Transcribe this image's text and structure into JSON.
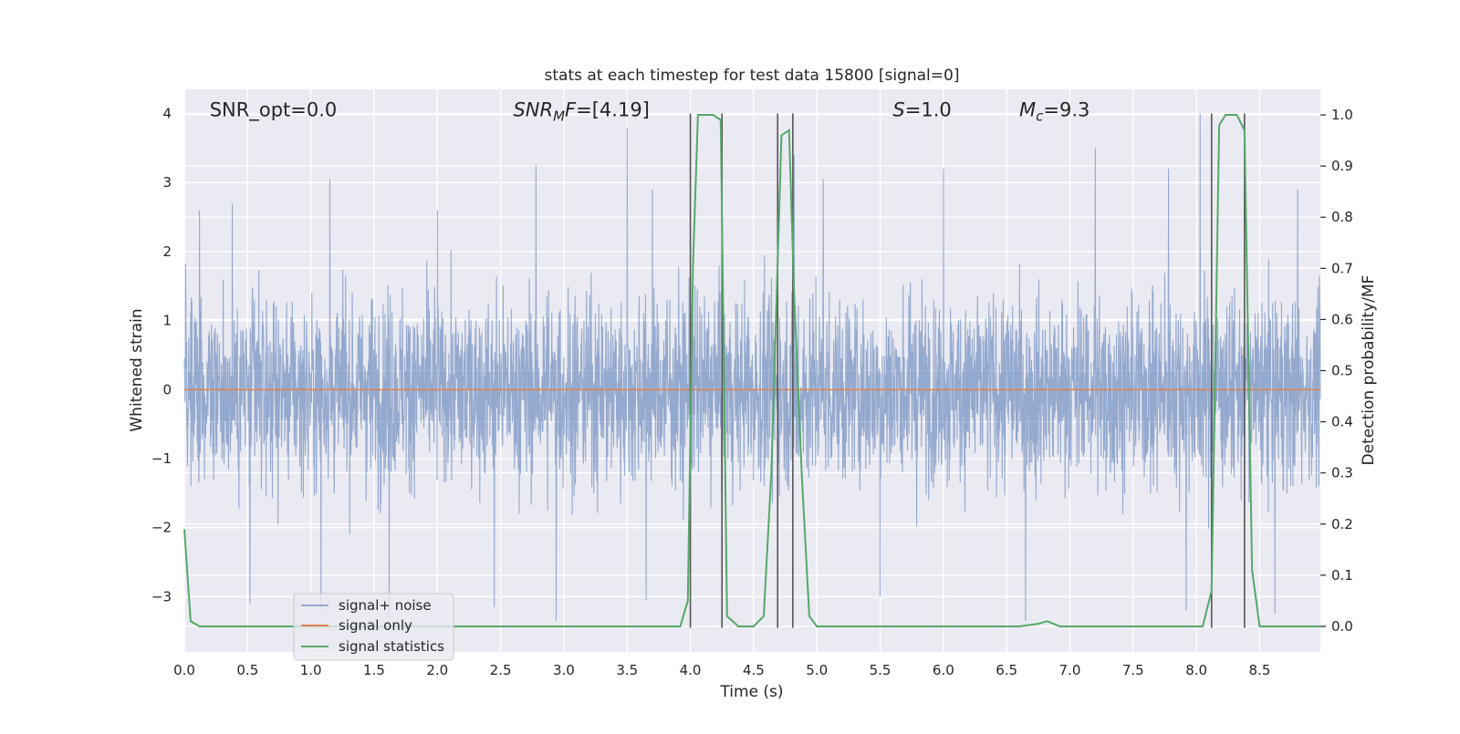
{
  "chart_data": {
    "type": "line",
    "title": "stats at each timestep for test data 15800 [signal=0]",
    "xlabel": "Time (s)",
    "ylabel_left": "Whitened strain",
    "ylabel_right": "Detection probability/MF",
    "xlim": [
      0.0,
      8.98
    ],
    "ylim_left": [
      -3.8,
      4.35
    ],
    "ylim_right": [
      -0.05,
      1.05
    ],
    "xticks": [
      0.0,
      0.5,
      1.0,
      1.5,
      2.0,
      2.5,
      3.0,
      3.5,
      4.0,
      4.5,
      5.0,
      5.5,
      6.0,
      6.5,
      7.0,
      7.5,
      8.0,
      8.5
    ],
    "xtick_labels": [
      "0.0",
      "0.5",
      "1.0",
      "1.5",
      "2.0",
      "2.5",
      "3.0",
      "3.5",
      "4.0",
      "4.5",
      "5.0",
      "5.5",
      "6.0",
      "6.5",
      "7.0",
      "7.5",
      "8.0",
      "8.5"
    ],
    "yticks_left": [
      -3,
      -2,
      -1,
      0,
      1,
      2,
      3,
      4
    ],
    "ytick_labels_left": [
      "−3",
      "−2",
      "−1",
      "0",
      "1",
      "2",
      "3",
      "4"
    ],
    "yticks_right": [
      0.0,
      0.1,
      0.2,
      0.3,
      0.4,
      0.5,
      0.6,
      0.7,
      0.8,
      0.9,
      1.0
    ],
    "ytick_labels_right": [
      "0.0",
      "0.1",
      "0.2",
      "0.3",
      "0.4",
      "0.5",
      "0.6",
      "0.7",
      "0.8",
      "0.9",
      "1.0"
    ],
    "grid": true,
    "legend_position": "bottom-left",
    "annotations": [
      {
        "label": "SNR_opt=0.0",
        "x": 0.2,
        "y": 4.05,
        "italic_parts": []
      },
      {
        "label": "SNR_MF=[4.19]",
        "x": 2.6,
        "y": 4.05,
        "segments": [
          [
            "SNR",
            "italic"
          ],
          [
            "M",
            "italic-sub"
          ],
          [
            "F",
            "italic"
          ],
          [
            "=[4.19]",
            "normal"
          ]
        ]
      },
      {
        "label": "S=1.0",
        "x": 5.6,
        "y": 4.05,
        "segments": [
          [
            "S",
            "italic"
          ],
          [
            "=1.0",
            "normal"
          ]
        ]
      },
      {
        "label": "M_c=9.3",
        "x": 6.6,
        "y": 4.05,
        "segments": [
          [
            "M",
            "italic"
          ],
          [
            "c",
            "italic-sub"
          ],
          [
            "=9.3",
            "normal"
          ]
        ]
      }
    ],
    "series": [
      {
        "name": "signal+ noise",
        "color": "#4c72b0",
        "opacity": 0.55,
        "axis": "left",
        "kind": "dense-noise",
        "peak_values": [
          {
            "x": 0.12,
            "y": 2.6
          },
          {
            "x": 0.38,
            "y": 2.7
          },
          {
            "x": 1.15,
            "y": 3.05
          },
          {
            "x": 1.62,
            "y": 2.95
          },
          {
            "x": 2.0,
            "y": 2.6
          },
          {
            "x": 2.78,
            "y": 3.25
          },
          {
            "x": 3.5,
            "y": 3.8
          },
          {
            "x": 3.7,
            "y": 2.9
          },
          {
            "x": 4.82,
            "y": 3.4
          },
          {
            "x": 5.05,
            "y": 3.05
          },
          {
            "x": 6.0,
            "y": 3.2
          },
          {
            "x": 7.2,
            "y": 3.5
          },
          {
            "x": 7.78,
            "y": 3.2
          },
          {
            "x": 8.03,
            "y": 4.0
          },
          {
            "x": 8.8,
            "y": 2.9
          }
        ],
        "trough_values": [
          {
            "x": 0.52,
            "y": -3.1
          },
          {
            "x": 1.08,
            "y": -3.2
          },
          {
            "x": 1.62,
            "y": -3.3
          },
          {
            "x": 2.45,
            "y": -3.15
          },
          {
            "x": 2.94,
            "y": -3.35
          },
          {
            "x": 3.65,
            "y": -3.05
          },
          {
            "x": 5.5,
            "y": -3.0
          },
          {
            "x": 6.65,
            "y": -3.35
          },
          {
            "x": 7.92,
            "y": -3.2
          },
          {
            "x": 8.62,
            "y": -3.25
          }
        ],
        "typical_range": [
          -2.0,
          2.0
        ]
      },
      {
        "name": "signal only",
        "color": "#dd8452",
        "axis": "left",
        "x": [
          0.0,
          8.98
        ],
        "y": [
          0.0,
          0.0
        ]
      },
      {
        "name": "signal statistics",
        "color": "#55a868",
        "axis": "right",
        "x": [
          0.0,
          0.05,
          0.12,
          0.5,
          1.0,
          2.0,
          3.0,
          3.92,
          3.98,
          4.02,
          4.06,
          4.18,
          4.24,
          4.29,
          4.38,
          4.5,
          4.58,
          4.64,
          4.72,
          4.78,
          4.82,
          4.88,
          4.94,
          5.0,
          5.5,
          6.0,
          6.6,
          6.75,
          6.82,
          6.92,
          7.5,
          8.05,
          8.12,
          8.18,
          8.23,
          8.32,
          8.38,
          8.44,
          8.5,
          8.98
        ],
        "y": [
          0.19,
          0.01,
          0.0,
          0.0,
          0.0,
          0.0,
          0.0,
          0.0,
          0.05,
          0.7,
          1.0,
          1.0,
          0.99,
          0.02,
          0.0,
          0.0,
          0.02,
          0.3,
          0.96,
          0.97,
          0.65,
          0.3,
          0.02,
          0.0,
          0.0,
          0.0,
          0.0,
          0.005,
          0.01,
          0.0,
          0.0,
          0.0,
          0.07,
          0.98,
          1.0,
          1.0,
          0.97,
          0.11,
          0.0,
          0.0
        ]
      }
    ],
    "vlines": {
      "color": "#555555",
      "y_range_left": [
        -3.45,
        4.0
      ],
      "x": [
        4.0,
        4.25,
        4.69,
        4.81,
        8.12,
        8.38
      ]
    },
    "noise_seed": 15800
  }
}
